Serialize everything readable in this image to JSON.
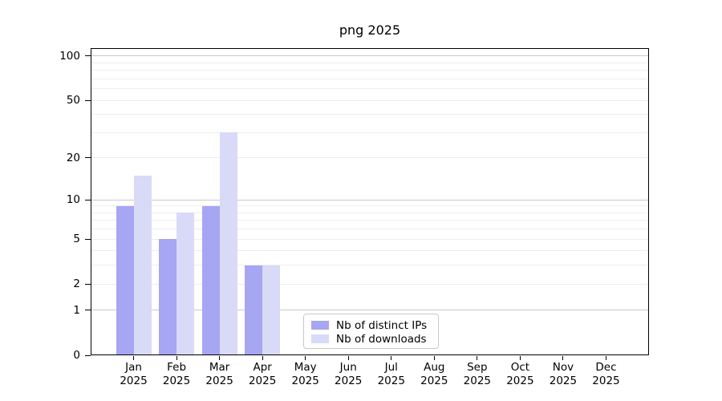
{
  "chart_data": {
    "type": "bar",
    "title": "png 2025",
    "categories": [
      "Jan",
      "Feb",
      "Mar",
      "Apr",
      "May",
      "Jun",
      "Jul",
      "Aug",
      "Sep",
      "Oct",
      "Nov",
      "Dec"
    ],
    "category_year": "2025",
    "series": [
      {
        "name": "Nb of distinct IPs",
        "color": "#a6a6f2",
        "values": [
          9,
          5,
          9,
          3,
          0,
          0,
          0,
          0,
          0,
          0,
          0,
          0
        ]
      },
      {
        "name": "Nb of downloads",
        "color": "#d9d9f8",
        "values": [
          15,
          8,
          30,
          3,
          0,
          0,
          0,
          0,
          0,
          0,
          0,
          0
        ]
      }
    ],
    "yscale": "log1p",
    "ylim": [
      0,
      113
    ],
    "y_major_ticks": [
      0,
      1,
      2,
      5,
      10,
      20,
      50,
      100
    ],
    "y_emphasized_gridlines": [
      1,
      10,
      100
    ],
    "y_minor_gridlines": [
      3,
      4,
      6,
      7,
      8,
      9,
      30,
      40,
      60,
      70,
      80,
      90
    ],
    "legend": {
      "location": "lower center"
    }
  },
  "colors": {
    "background": "#ffffff",
    "axis": "#000000",
    "grid_emphasized": "#c8c8c8",
    "grid_minor": "#ededed",
    "text": "#000000",
    "legend_border": "#c9c9c9"
  }
}
